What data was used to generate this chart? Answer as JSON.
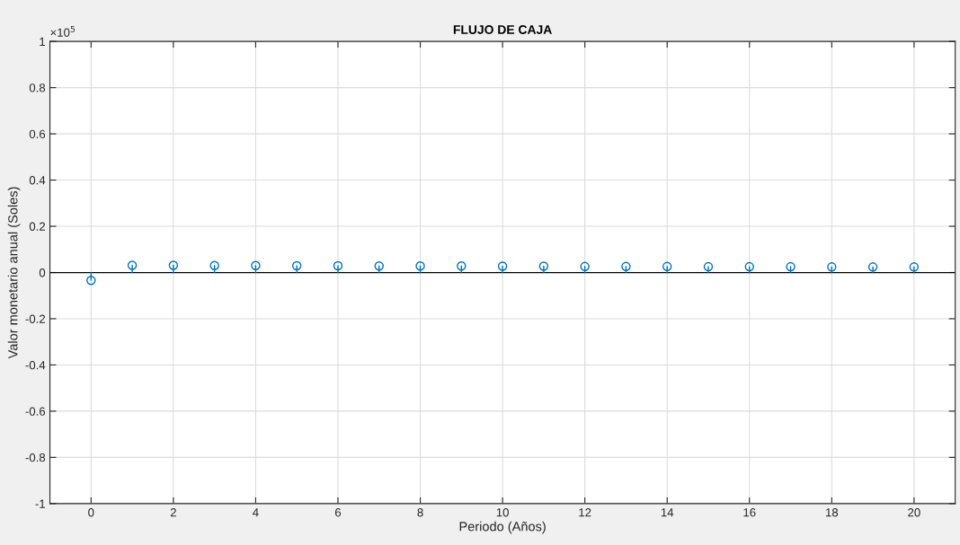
{
  "chart_data": {
    "type": "lollipop",
    "title": "FLUJO DE CAJA",
    "xlabel": "Periodo (Años)",
    "ylabel": "Valor monetario anual (Soles)",
    "annotations": [
      "×10$^{5}$"
    ],
    "x": [
      0,
      1,
      2,
      3,
      4,
      5,
      6,
      7,
      8,
      9,
      10,
      11,
      12,
      13,
      14,
      15,
      16,
      17,
      18,
      19,
      20
    ],
    "series": [
      {
        "color": "#0072bd",
        "values": [
          -0.034,
          0.031,
          0.031,
          0.03,
          0.03,
          0.029,
          0.029,
          0.028,
          0.028,
          0.028,
          0.027,
          0.027,
          0.026,
          0.026,
          0.026,
          0.025,
          0.025,
          0.025,
          0.024,
          0.024,
          0.024
        ]
      }
    ],
    "xlim": [
      -1,
      21
    ],
    "xticks": [
      0,
      2,
      4,
      6,
      8,
      10,
      12,
      14,
      16,
      18,
      20
    ],
    "ylim": [
      -1,
      1
    ],
    "yticks": [
      -1,
      -0.8,
      -0.6,
      -0.4,
      -0.2,
      0,
      0.2,
      0.4,
      0.6,
      0.8,
      1
    ],
    "grid": true,
    "marker": "circle",
    "line_style": "solid"
  }
}
